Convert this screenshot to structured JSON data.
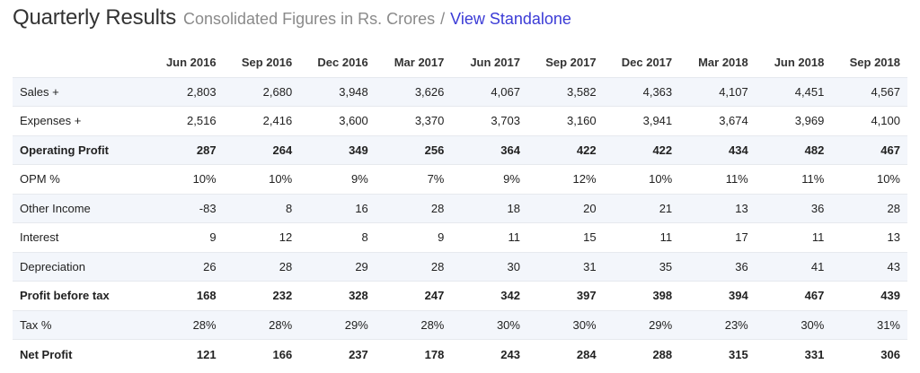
{
  "header": {
    "title": "Quarterly Results",
    "subtitle": "Consolidated Figures in Rs. Crores",
    "separator": "/",
    "link": "View Standalone"
  },
  "table": {
    "columns": [
      "Jun 2016",
      "Sep 2016",
      "Dec 2016",
      "Mar 2017",
      "Jun 2017",
      "Sep 2017",
      "Dec 2017",
      "Mar 2018",
      "Jun 2018",
      "Sep 2018"
    ],
    "rows": [
      {
        "label": "Sales +",
        "bold": false,
        "values": [
          "2,803",
          "2,680",
          "3,948",
          "3,626",
          "4,067",
          "3,582",
          "4,363",
          "4,107",
          "4,451",
          "4,567"
        ]
      },
      {
        "label": "Expenses +",
        "bold": false,
        "values": [
          "2,516",
          "2,416",
          "3,600",
          "3,370",
          "3,703",
          "3,160",
          "3,941",
          "3,674",
          "3,969",
          "4,100"
        ]
      },
      {
        "label": "Operating Profit",
        "bold": true,
        "values": [
          "287",
          "264",
          "349",
          "256",
          "364",
          "422",
          "422",
          "434",
          "482",
          "467"
        ]
      },
      {
        "label": "OPM %",
        "bold": false,
        "values": [
          "10%",
          "10%",
          "9%",
          "7%",
          "9%",
          "12%",
          "10%",
          "11%",
          "11%",
          "10%"
        ]
      },
      {
        "label": "Other Income",
        "bold": false,
        "values": [
          "-83",
          "8",
          "16",
          "28",
          "18",
          "20",
          "21",
          "13",
          "36",
          "28"
        ]
      },
      {
        "label": "Interest",
        "bold": false,
        "values": [
          "9",
          "12",
          "8",
          "9",
          "11",
          "15",
          "11",
          "17",
          "11",
          "13"
        ]
      },
      {
        "label": "Depreciation",
        "bold": false,
        "values": [
          "26",
          "28",
          "29",
          "28",
          "30",
          "31",
          "35",
          "36",
          "41",
          "43"
        ]
      },
      {
        "label": "Profit before tax",
        "bold": true,
        "values": [
          "168",
          "232",
          "328",
          "247",
          "342",
          "397",
          "398",
          "394",
          "467",
          "439"
        ]
      },
      {
        "label": "Tax %",
        "bold": false,
        "values": [
          "28%",
          "28%",
          "29%",
          "28%",
          "30%",
          "30%",
          "29%",
          "23%",
          "30%",
          "31%"
        ]
      },
      {
        "label": "Net Profit",
        "bold": true,
        "values": [
          "121",
          "166",
          "237",
          "178",
          "243",
          "284",
          "288",
          "315",
          "331",
          "306"
        ]
      }
    ]
  }
}
